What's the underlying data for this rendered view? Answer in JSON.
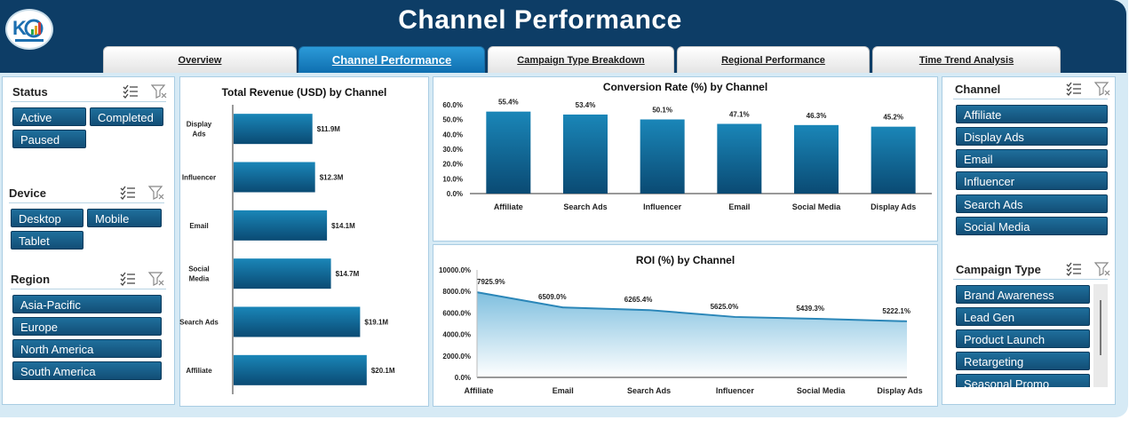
{
  "header": {
    "title": "Channel Performance"
  },
  "tabs": [
    {
      "label": "Overview",
      "active": false
    },
    {
      "label": "Channel Performance",
      "active": true
    },
    {
      "label": "Campaign Type Breakdown",
      "active": false
    },
    {
      "label": "Regional Performance",
      "active": false
    },
    {
      "label": "Time Trend Analysis",
      "active": false
    }
  ],
  "slicers": {
    "status": {
      "title": "Status",
      "items": [
        "Active",
        "Completed",
        "Paused"
      ]
    },
    "device": {
      "title": "Device",
      "items": [
        "Desktop",
        "Mobile",
        "Tablet"
      ]
    },
    "region": {
      "title": "Region",
      "items": [
        "Asia-Pacific",
        "Europe",
        "North America",
        "South America"
      ]
    },
    "channel": {
      "title": "Channel",
      "items": [
        "Affiliate",
        "Display Ads",
        "Email",
        "Influencer",
        "Search Ads",
        "Social Media"
      ]
    },
    "campaign_type": {
      "title": "Campaign Type",
      "items": [
        "Brand Awareness",
        "Lead Gen",
        "Product Launch",
        "Retargeting",
        "Seasonal Promo"
      ]
    }
  },
  "icons": {
    "multi_select": "multi-select-icon",
    "clear_filter": "clear-filter-icon"
  },
  "colors": {
    "header": "#0d3d66",
    "bar_dark": "#0a4a73",
    "bar_light": "#1a86b8",
    "active_tab": "#1a82c4",
    "area": "#7fbfdf"
  },
  "chart_data": [
    {
      "type": "bar",
      "orientation": "horizontal",
      "title": "Total Revenue (USD) by Channel",
      "categories": [
        "Display Ads",
        "Influencer",
        "Email",
        "Social Media",
        "Search Ads",
        "Affiliate"
      ],
      "values": [
        11.9,
        12.3,
        14.1,
        14.7,
        19.1,
        20.1
      ],
      "data_labels": [
        "$11.9M",
        "$12.3M",
        "$14.1M",
        "$14.7M",
        "$19.1M",
        "$20.1M"
      ],
      "category_labels": [
        [
          "Display",
          "Ads"
        ],
        [
          "Influencer"
        ],
        [
          "Email"
        ],
        [
          "Social",
          "Media"
        ],
        [
          "Search Ads"
        ],
        [
          "Affiliate"
        ]
      ],
      "xlim": [
        0,
        22
      ]
    },
    {
      "type": "bar",
      "title": "Conversion Rate (%) by Channel",
      "categories": [
        "Affiliate",
        "Search Ads",
        "Influencer",
        "Email",
        "Social Media",
        "Display Ads"
      ],
      "values": [
        55.4,
        53.4,
        50.1,
        47.1,
        46.3,
        45.2
      ],
      "data_labels": [
        "55.4%",
        "53.4%",
        "50.1%",
        "47.1%",
        "46.3%",
        "45.2%"
      ],
      "ylim": [
        0,
        60
      ],
      "yticks": [
        "0.0%",
        "10.0%",
        "20.0%",
        "30.0%",
        "40.0%",
        "50.0%",
        "60.0%"
      ]
    },
    {
      "type": "area",
      "title": "ROI (%) by Channel",
      "categories": [
        "Affiliate",
        "Email",
        "Search Ads",
        "Influencer",
        "Social Media",
        "Display Ads"
      ],
      "values": [
        7925.9,
        6509.0,
        6265.4,
        5625.0,
        5439.3,
        5222.1
      ],
      "data_labels": [
        "7925.9%",
        "6509.0%",
        "6265.4%",
        "5625.0%",
        "5439.3%",
        "5222.1%"
      ],
      "ylim": [
        0,
        10000
      ],
      "yticks": [
        "0.0%",
        "2000.0%",
        "4000.0%",
        "6000.0%",
        "8000.0%",
        "10000.0%"
      ]
    }
  ]
}
